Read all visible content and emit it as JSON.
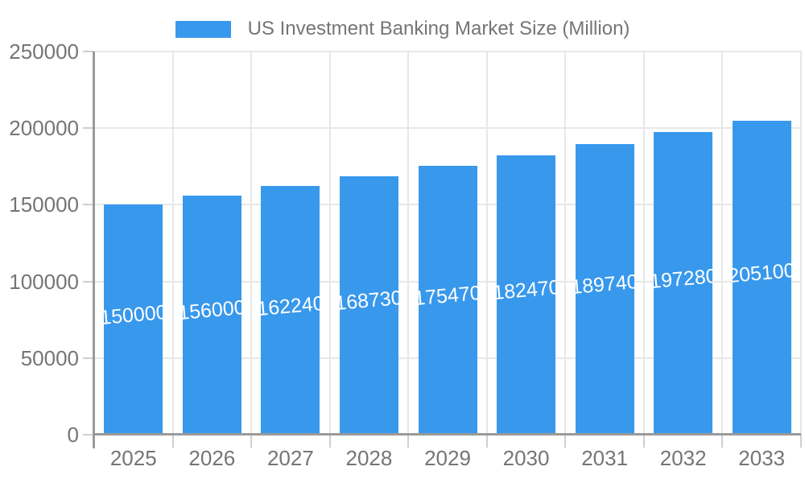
{
  "legend": {
    "label": "US Investment Banking Market Size (Million)",
    "swatch_color": "#3898EC"
  },
  "chart_data": {
    "type": "bar",
    "title": "US Investment Banking Market Size (Million)",
    "series_name": "US Investment Banking Market Size (Million)",
    "categories": [
      "2025",
      "2026",
      "2027",
      "2028",
      "2029",
      "2030",
      "2031",
      "2032",
      "2033"
    ],
    "values": [
      150000,
      156000,
      162240,
      168730,
      175470,
      182470,
      189740,
      197280,
      205100
    ],
    "value_labels": [
      "150000",
      "156000",
      "162240",
      "168730",
      "175470",
      "182470",
      "189740",
      "197280",
      "205100"
    ],
    "xlabel": "",
    "ylabel": "",
    "ylim": [
      0,
      250000
    ],
    "yticks": [
      0,
      50000,
      100000,
      150000,
      200000,
      250000
    ],
    "ytick_labels": [
      "0",
      "50000",
      "100000",
      "150000",
      "200000",
      "250000"
    ],
    "grid": true,
    "legend_position": "top",
    "bar_color": "#3898EC",
    "value_label_color": "#ffffff",
    "axis_text_color": "#757575",
    "gridline_color": "#e7e7e7",
    "axis_line_color": "#9a9a9a"
  }
}
